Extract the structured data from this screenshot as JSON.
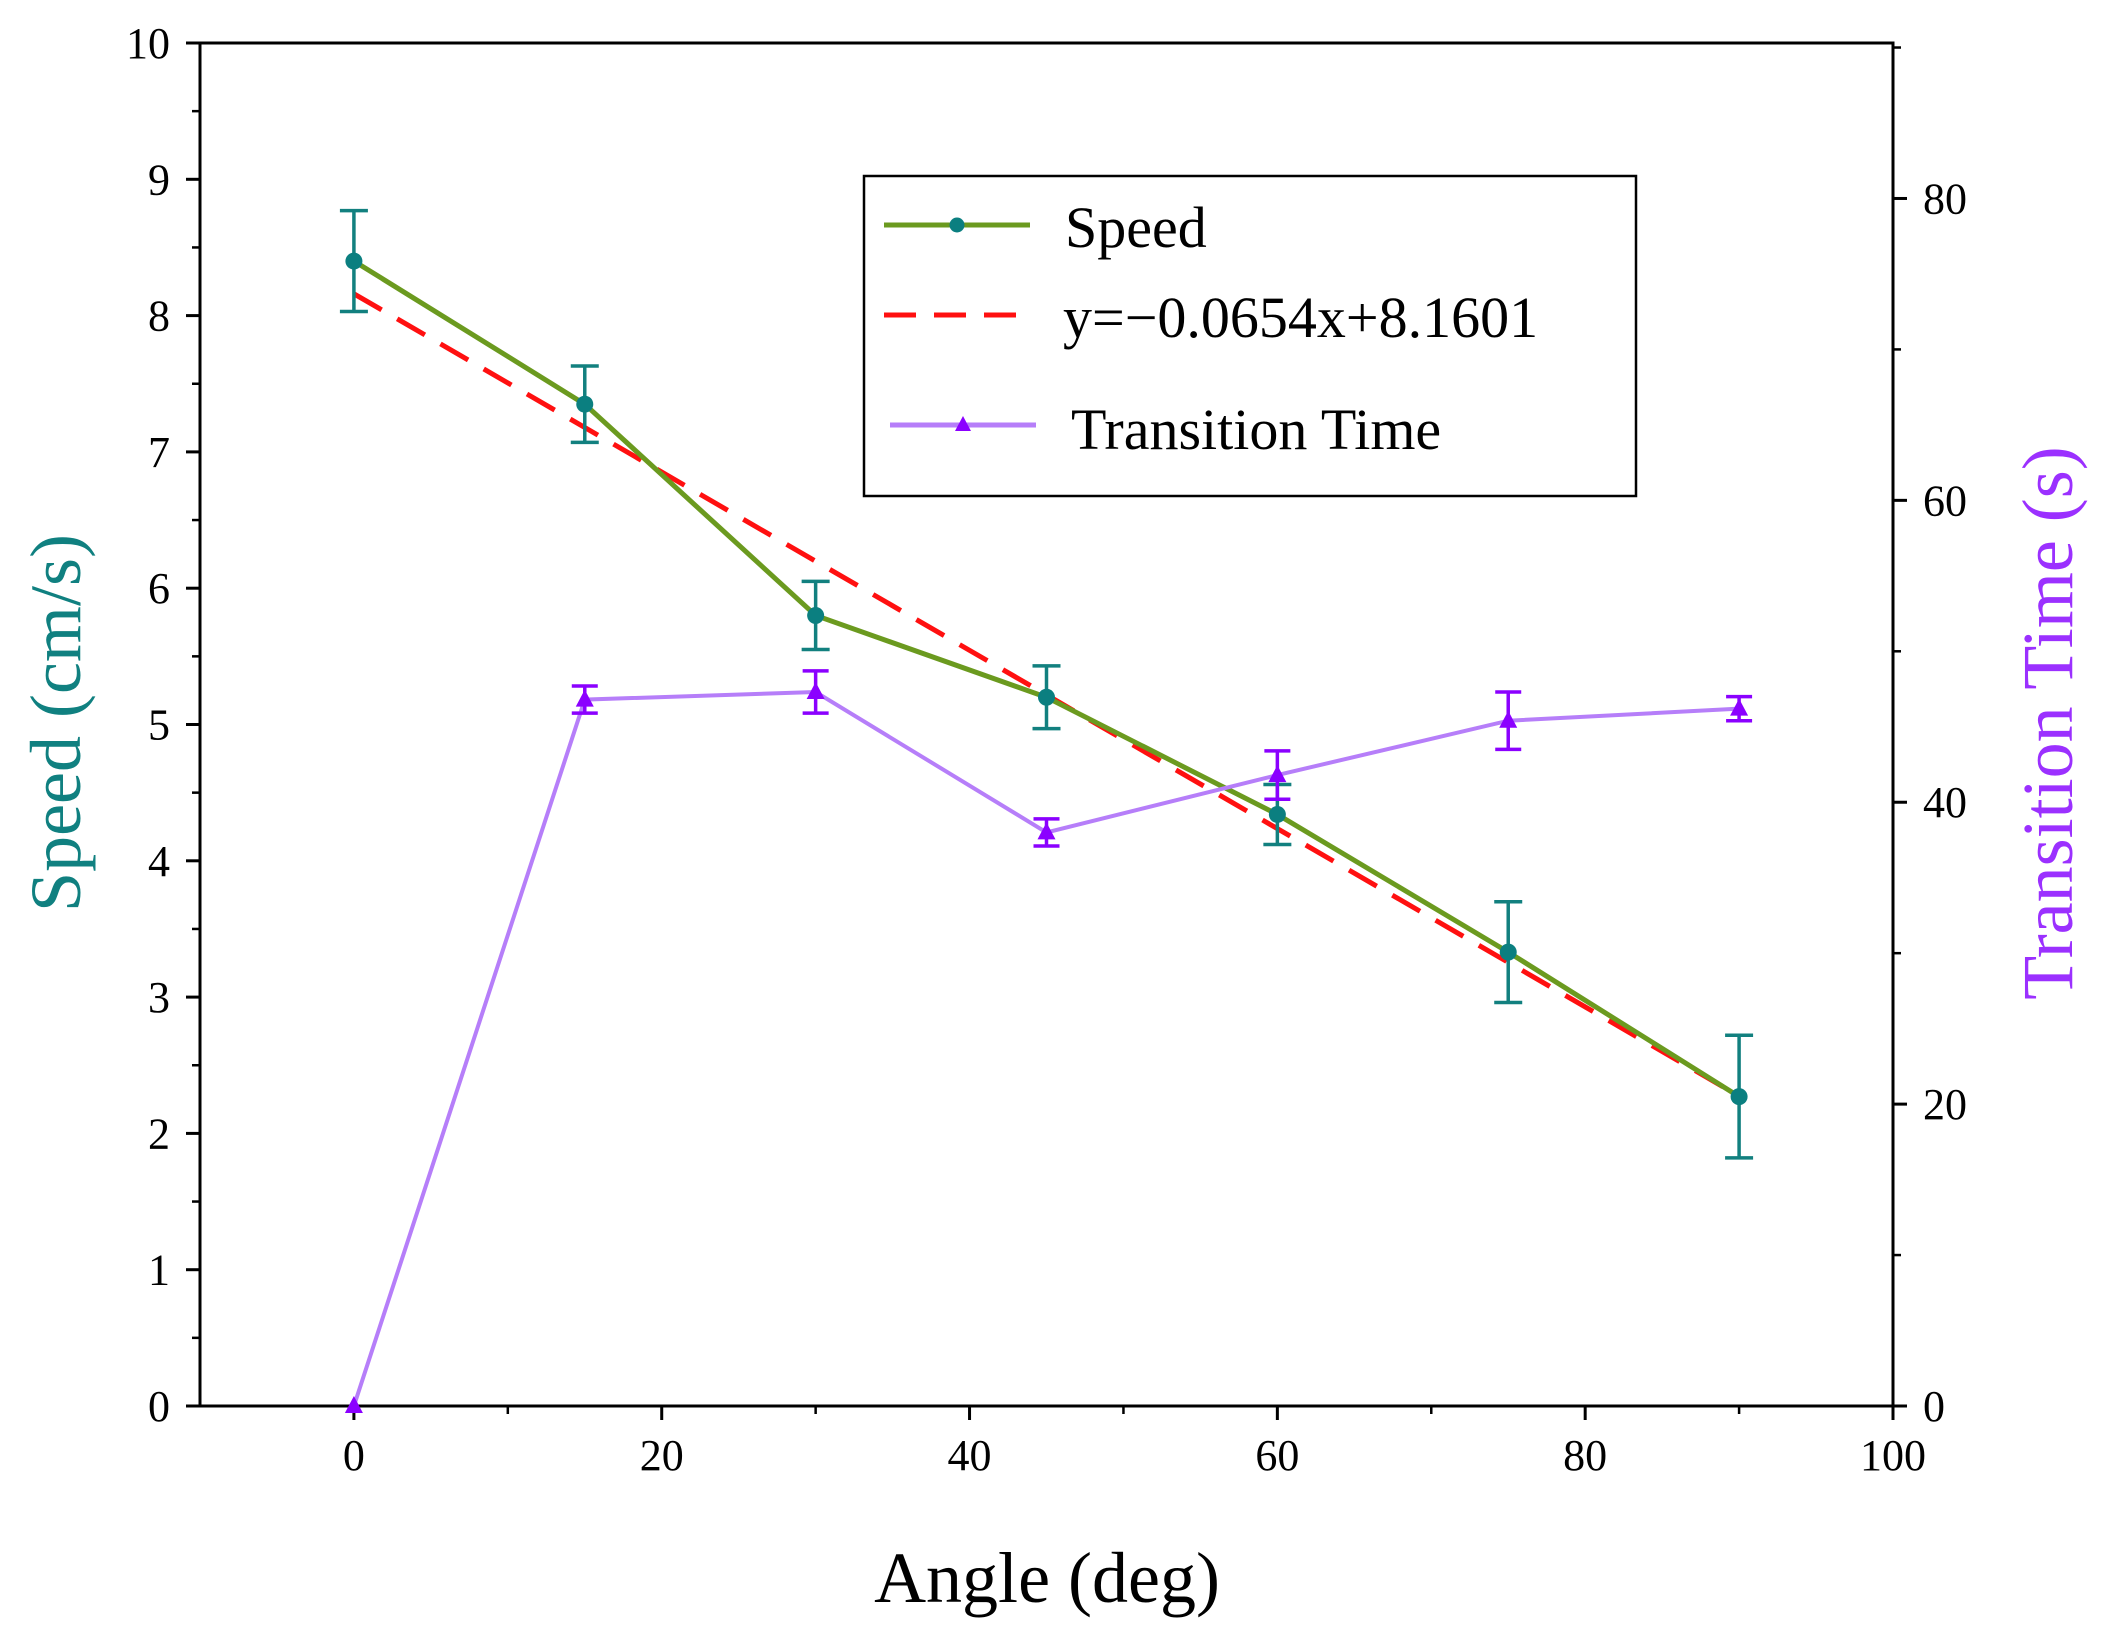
{
  "chart_data": {
    "type": "line",
    "title": "",
    "xlabel": "Angle (deg)",
    "ylabel_left": "Speed (cm/s)",
    "ylabel_right": "Transition Time (s)",
    "xlim": [
      -10,
      100
    ],
    "ylim_left": [
      0,
      10
    ],
    "ylim_right": [
      0,
      90.3
    ],
    "x_ticks": [
      0,
      20,
      40,
      60,
      80,
      100
    ],
    "y_left_ticks": [
      0,
      1,
      2,
      3,
      4,
      5,
      6,
      7,
      8,
      9,
      10
    ],
    "y_right_ticks": [
      0,
      20,
      40,
      60,
      80
    ],
    "grid": false,
    "legend_position": "top-right",
    "colors": {
      "speed": "#6b9a1f",
      "speed_marker": "#0b7f80",
      "speed_error": "#12807f",
      "fit": "#ff1010",
      "transition": "#b67ef9",
      "transition_marker": "#8b00ff",
      "left_axis_title": "#108080",
      "right_axis_title": "#9b30ff"
    },
    "series": [
      {
        "name": "Speed",
        "axis": "left",
        "x": [
          0,
          15,
          30,
          45,
          60,
          75,
          90
        ],
        "y": [
          8.4,
          7.35,
          5.8,
          5.2,
          4.34,
          3.33,
          2.27
        ],
        "error": [
          0.37,
          0.28,
          0.25,
          0.23,
          0.22,
          0.37,
          0.45
        ]
      },
      {
        "name": "y=−0.0654x+8.1601",
        "axis": "left",
        "style": "dashed",
        "slope": -0.0654,
        "intercept": 8.1601,
        "x_range": [
          0,
          90
        ]
      },
      {
        "name": "Transition Time",
        "axis": "right",
        "x": [
          0,
          15,
          30,
          45,
          60,
          75,
          90
        ],
        "y": [
          0,
          46.8,
          47.3,
          38.0,
          41.8,
          45.4,
          46.2
        ],
        "error": [
          0,
          0.9,
          1.4,
          0.9,
          1.6,
          1.9,
          0.8
        ]
      }
    ]
  }
}
